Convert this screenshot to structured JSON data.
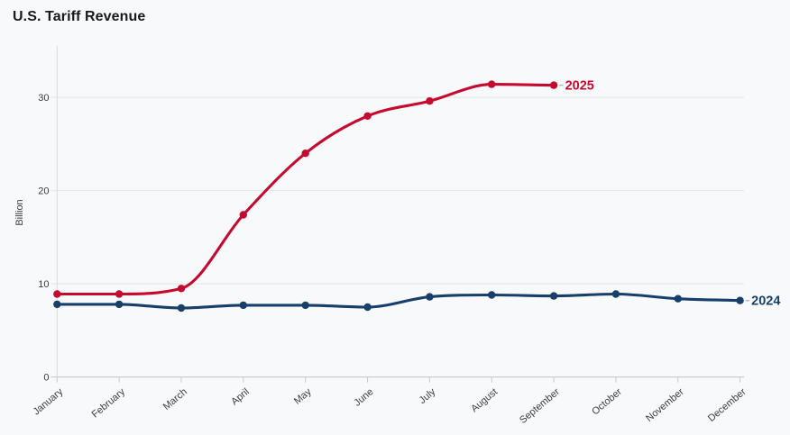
{
  "title": "U.S. Tariff Revenue",
  "chart_data": {
    "type": "line",
    "title": "U.S. Tariff Revenue",
    "xlabel": "",
    "ylabel": "Billion",
    "categories": [
      "January",
      "February",
      "March",
      "April",
      "May",
      "June",
      "July",
      "August",
      "September",
      "October",
      "November",
      "December"
    ],
    "yticks": [
      0,
      10,
      20,
      30
    ],
    "ylim": [
      0,
      35.5
    ],
    "grid": "horizontal",
    "legend_position": "line-end-labels",
    "series": [
      {
        "name": "2025",
        "color": "#c40b2f",
        "values": [
          8.9,
          8.9,
          9.5,
          17.4,
          24.0,
          28.0,
          29.6,
          31.4,
          31.3
        ]
      },
      {
        "name": "2024",
        "color": "#173f6a",
        "values": [
          7.8,
          7.8,
          7.4,
          7.7,
          7.7,
          7.5,
          8.6,
          8.8,
          8.7,
          8.9,
          8.4,
          8.2
        ]
      }
    ],
    "colors": {
      "background": "#f8f9fa",
      "gridline": "#e4e4e6",
      "zero_axis": "#c2c2c6",
      "vertical_axis": "#d9d9dc",
      "tick_mark": "#c9c9cd",
      "tick_text": "#3c3c3c",
      "leader_dash": "#b9b9bd"
    }
  }
}
